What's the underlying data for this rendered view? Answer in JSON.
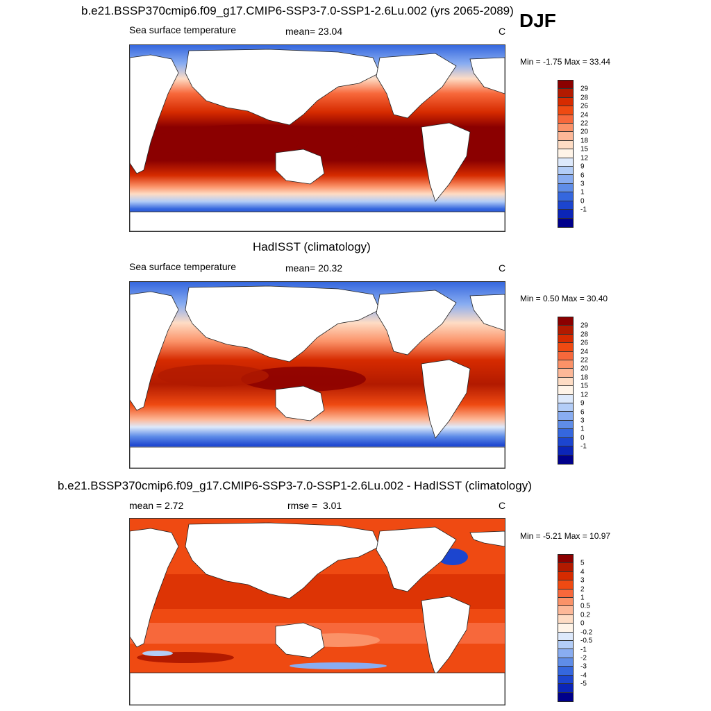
{
  "season": "DJF",
  "panels": [
    {
      "title": "b.e21.BSSP370cmip6.f09_g17.CMIP6-SSP3-7.0-SSP1-2.6Lu.002 (yrs 2065-2089)",
      "left_label": "Sea surface temperature",
      "stat_label": "mean=",
      "stat_value": "23.04",
      "units": "C",
      "minmax": "Min =  -1.75 Max =  33.44",
      "colorbar": {
        "labels": [
          "29",
          "28",
          "26",
          "24",
          "22",
          "20",
          "18",
          "15",
          "12",
          "9",
          "6",
          "3",
          "1",
          "0",
          "-1"
        ],
        "colors": [
          "#8b0000",
          "#b21a00",
          "#d62b00",
          "#ef4a12",
          "#f7683b",
          "#fb9268",
          "#fdb898",
          "#fedcc4",
          "#fff4e8",
          "#dde9fb",
          "#b3cdf7",
          "#89adf1",
          "#5f8de8",
          "#3567de",
          "#1c45cf",
          "#0b25b8",
          "#00008b"
        ]
      }
    },
    {
      "title": "HadISST (climatology)",
      "left_label": "Sea surface temperature",
      "stat_label": "mean=",
      "stat_value": "20.32",
      "units": "C",
      "minmax": "Min =   0.50 Max =  30.40",
      "colorbar": {
        "labels": [
          "29",
          "28",
          "26",
          "24",
          "22",
          "20",
          "18",
          "15",
          "12",
          "9",
          "6",
          "3",
          "1",
          "0",
          "-1"
        ],
        "colors": [
          "#8b0000",
          "#b21a00",
          "#d62b00",
          "#ef4a12",
          "#f7683b",
          "#fb9268",
          "#fdb898",
          "#fedcc4",
          "#fff4e8",
          "#dde9fb",
          "#b3cdf7",
          "#89adf1",
          "#5f8de8",
          "#3567de",
          "#1c45cf",
          "#0b25b8",
          "#00008b"
        ]
      }
    },
    {
      "title": "b.e21.BSSP370cmip6.f09_g17.CMIP6-SSP3-7.0-SSP1-2.6Lu.002 - HadISST (climatology)",
      "left_label": "mean =   2.72",
      "stat_label": "rmse =",
      "stat_value": "3.01",
      "units": "C",
      "minmax": "Min =  -5.21 Max =  10.97",
      "colorbar": {
        "labels": [
          "5",
          "4",
          "3",
          "2",
          "1",
          "0.5",
          "0.2",
          "0",
          "-0.2",
          "-0.5",
          "-1",
          "-2",
          "-3",
          "-4",
          "-5"
        ],
        "colors": [
          "#8b0000",
          "#b21a00",
          "#d62b00",
          "#ef4a12",
          "#f7683b",
          "#fb9268",
          "#fdb898",
          "#fedcc4",
          "#fff4e8",
          "#dde9fb",
          "#b3cdf7",
          "#89adf1",
          "#5f8de8",
          "#3567de",
          "#1c45cf",
          "#0b25b8",
          "#00008b"
        ]
      }
    }
  ]
}
